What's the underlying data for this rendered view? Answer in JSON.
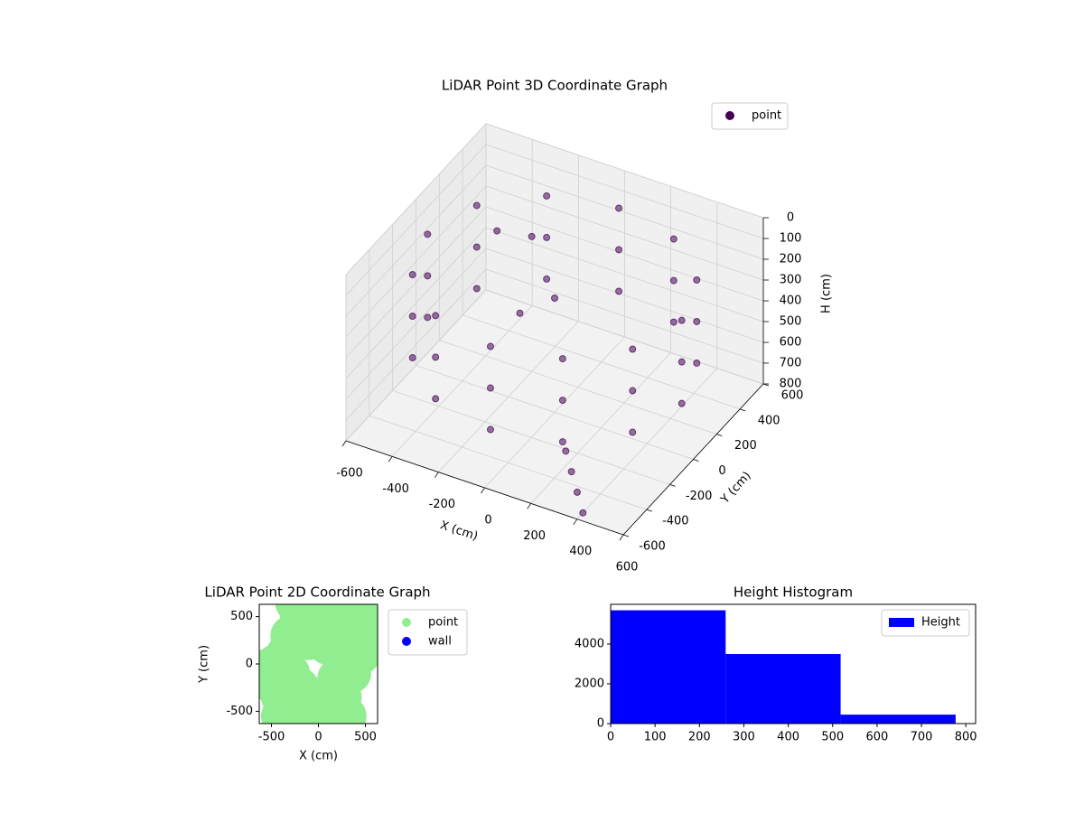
{
  "chart_data": [
    {
      "type": "scatter3d",
      "title": "LiDAR Point 3D Coordinate Graph",
      "xlabel": "X (cm)",
      "ylabel": "Y (cm)",
      "zlabel": "H (cm)",
      "xlim": [
        -600,
        600
      ],
      "ylim": [
        -600,
        600
      ],
      "zlim": [
        800,
        0
      ],
      "xticks": [
        -600,
        -400,
        -200,
        0,
        200,
        400,
        600
      ],
      "yticks": [
        -600,
        -400,
        -200,
        0,
        200,
        400,
        600
      ],
      "zticks": [
        0,
        100,
        200,
        300,
        400,
        500,
        600,
        700,
        800
      ],
      "grid": true,
      "legend": "upper right",
      "series": [
        {
          "name": "point",
          "color": "#440154",
          "x": [
            550,
            476,
            275,
            0,
            -275,
            -476,
            -550,
            -476,
            -275,
            0,
            275,
            476,
            550,
            476,
            275,
            0,
            -275,
            -476,
            -550,
            -476,
            -275,
            0,
            275,
            476,
            550,
            476,
            275,
            0,
            -275,
            -476,
            -550,
            -476,
            -275,
            0,
            275,
            476,
            300,
            350,
            400,
            250,
            -300,
            -200,
            0,
            -100
          ],
          "y": [
            0,
            275,
            476,
            550,
            476,
            275,
            0,
            -275,
            -476,
            -550,
            -476,
            -275,
            0,
            275,
            476,
            550,
            476,
            275,
            0,
            -275,
            -476,
            -550,
            -476,
            -275,
            0,
            275,
            476,
            550,
            476,
            275,
            0,
            -275,
            -476,
            -550,
            -476,
            -275,
            -450,
            -500,
            -550,
            -400,
            100,
            200,
            0,
            -100
          ],
          "h": [
            150,
            150,
            150,
            150,
            150,
            150,
            150,
            150,
            150,
            150,
            150,
            150,
            350,
            350,
            350,
            350,
            350,
            350,
            350,
            350,
            350,
            350,
            350,
            350,
            550,
            550,
            550,
            550,
            550,
            550,
            550,
            550,
            550,
            550,
            550,
            550,
            700,
            750,
            800,
            650,
            100,
            150,
            250,
            300
          ]
        }
      ]
    },
    {
      "type": "scatter",
      "title": "LiDAR Point 2D Coordinate Graph",
      "xlabel": "X (cm)",
      "ylabel": "Y (cm)",
      "xlim": [
        -630,
        630
      ],
      "ylim": [
        -630,
        630
      ],
      "xticks": [
        -500,
        0,
        500
      ],
      "yticks": [
        -500,
        0,
        500
      ],
      "legend": "outside right",
      "series": [
        {
          "name": "point",
          "color": "#90ee90",
          "x": [
            -250,
            0,
            250,
            500,
            600,
            -200,
            0,
            200,
            400,
            -300,
            -100,
            100,
            -350,
            -450,
            -550,
            -500,
            -400,
            -300,
            -150,
            0,
            150,
            300,
            -300,
            -200,
            -100,
            100,
            250,
            200,
            350,
            450,
            -400
          ],
          "y": [
            650,
            600,
            550,
            450,
            300,
            500,
            400,
            400,
            300,
            300,
            250,
            200,
            100,
            0,
            -50,
            -200,
            -350,
            -500,
            -600,
            -650,
            -620,
            -550,
            -100,
            -250,
            -400,
            -450,
            -350,
            -150,
            -100,
            100,
            -550
          ]
        },
        {
          "name": "wall",
          "color": "#0000ff",
          "x": [],
          "y": []
        }
      ]
    },
    {
      "type": "histogram",
      "title": "Height Histogram",
      "bins": [
        0,
        259,
        518,
        777
      ],
      "values": [
        5700,
        3500,
        450
      ],
      "xlim": [
        0,
        822
      ],
      "ylim": [
        0,
        6000
      ],
      "xticks": [
        0,
        100,
        200,
        300,
        400,
        500,
        600,
        700,
        800
      ],
      "yticks": [
        0,
        2000,
        4000
      ],
      "legend": "upper right",
      "series_name": "Height",
      "color": "#0000ff"
    }
  ]
}
